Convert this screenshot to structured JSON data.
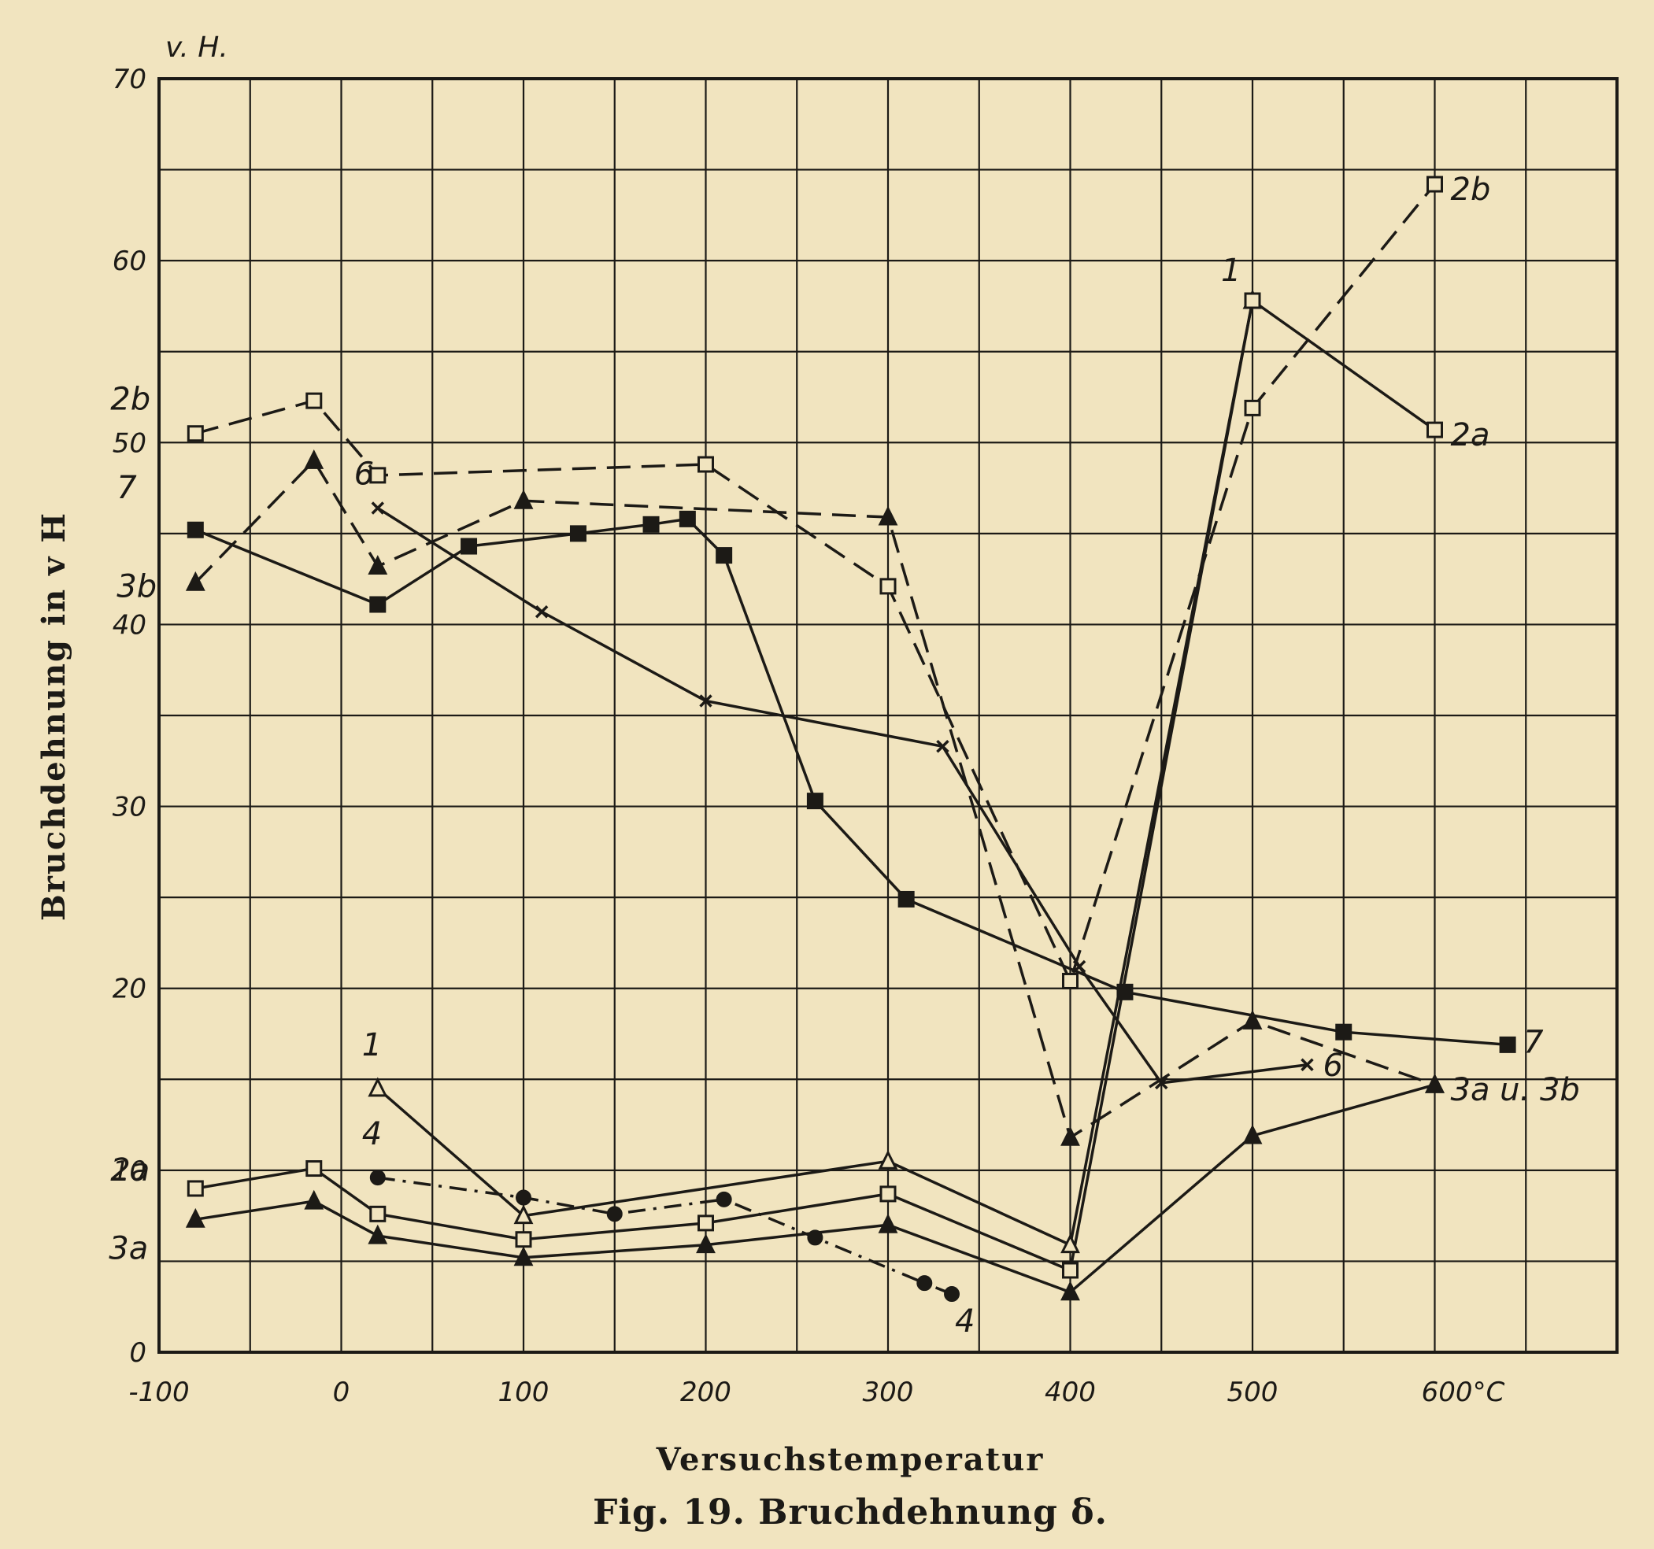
{
  "figure": {
    "caption": "Fig. 19.  Bruchdehnung δ.",
    "xlabel": "Versuchstemperatur",
    "ylabel": "Bruchdehnung in v H",
    "y_unit": "v. H.",
    "x_unit": "°C"
  },
  "colors": {
    "paper": "#f1e4bf",
    "ink": "#1c1a16"
  },
  "chart_data": {
    "type": "line",
    "title": "",
    "xlabel": "Versuchstemperatur",
    "ylabel": "Bruchdehnung in v H",
    "xlim": [
      -100,
      700
    ],
    "ylim": [
      0,
      70
    ],
    "x_ticks": [
      -100,
      0,
      100,
      200,
      300,
      400,
      500,
      600
    ],
    "x_tick_labels": [
      "-100",
      "0",
      "100",
      "200",
      "300",
      "400",
      "500",
      "600°C"
    ],
    "y_ticks": [
      0,
      10,
      20,
      30,
      40,
      50,
      60,
      70
    ],
    "y_tick_labels": [
      "0",
      "10",
      "20",
      "30",
      "40",
      "50",
      "60",
      "70"
    ],
    "grid": true,
    "series": [
      {
        "name": "1",
        "marker": "triangle-open",
        "dash": "solid",
        "x": [
          20,
          100,
          300,
          400,
          500
        ],
        "y": [
          14.5,
          7.5,
          10.5,
          5.9,
          57.8
        ]
      },
      {
        "name": "2a",
        "marker": "square-open",
        "dash": "solid",
        "x": [
          -80,
          -15,
          20,
          100,
          200,
          300,
          400,
          500,
          600
        ],
        "y": [
          9,
          10.1,
          7.6,
          6.2,
          7.1,
          8.7,
          4.5,
          57.8,
          50.7
        ]
      },
      {
        "name": "2b",
        "marker": "square-open",
        "dash": "long-dash",
        "x": [
          -80,
          -15,
          20,
          200,
          300,
          400,
          500,
          600
        ],
        "y": [
          50.5,
          52.3,
          48.2,
          48.8,
          42.1,
          20.4,
          51.9,
          64.2
        ]
      },
      {
        "name": "3a",
        "marker": "triangle-filled",
        "dash": "solid",
        "x": [
          -80,
          -15,
          20,
          100,
          200,
          300,
          400,
          500,
          600
        ],
        "y": [
          7.3,
          8.3,
          6.4,
          5.2,
          5.9,
          7,
          3.3,
          11.9,
          14.7
        ]
      },
      {
        "name": "3b",
        "marker": "triangle-filled",
        "dash": "long-dash",
        "x": [
          -80,
          -15,
          20,
          100,
          300,
          400,
          500,
          600
        ],
        "y": [
          42.3,
          49,
          43.2,
          46.8,
          45.9,
          11.8,
          18.2,
          14.7
        ]
      },
      {
        "name": "4",
        "marker": "circle-filled",
        "dash": "dash-dot",
        "x": [
          20,
          100,
          150,
          210,
          260,
          320,
          335
        ],
        "y": [
          9.6,
          8.5,
          7.6,
          8.4,
          6.3,
          3.8,
          3.2
        ]
      },
      {
        "name": "6",
        "marker": "cross",
        "dash": "solid",
        "x": [
          20,
          110,
          200,
          330,
          405,
          450,
          530
        ],
        "y": [
          46.4,
          40.7,
          35.8,
          33.3,
          21.2,
          14.8,
          15.8
        ]
      },
      {
        "name": "7",
        "marker": "square-filled",
        "dash": "solid",
        "x": [
          -80,
          20,
          70,
          130,
          170,
          190,
          210,
          260,
          310,
          430,
          550,
          640
        ],
        "y": [
          45.2,
          41.1,
          44.3,
          45,
          45.5,
          45.8,
          43.8,
          30.3,
          24.9,
          19.8,
          17.6,
          16.9
        ]
      }
    ]
  }
}
